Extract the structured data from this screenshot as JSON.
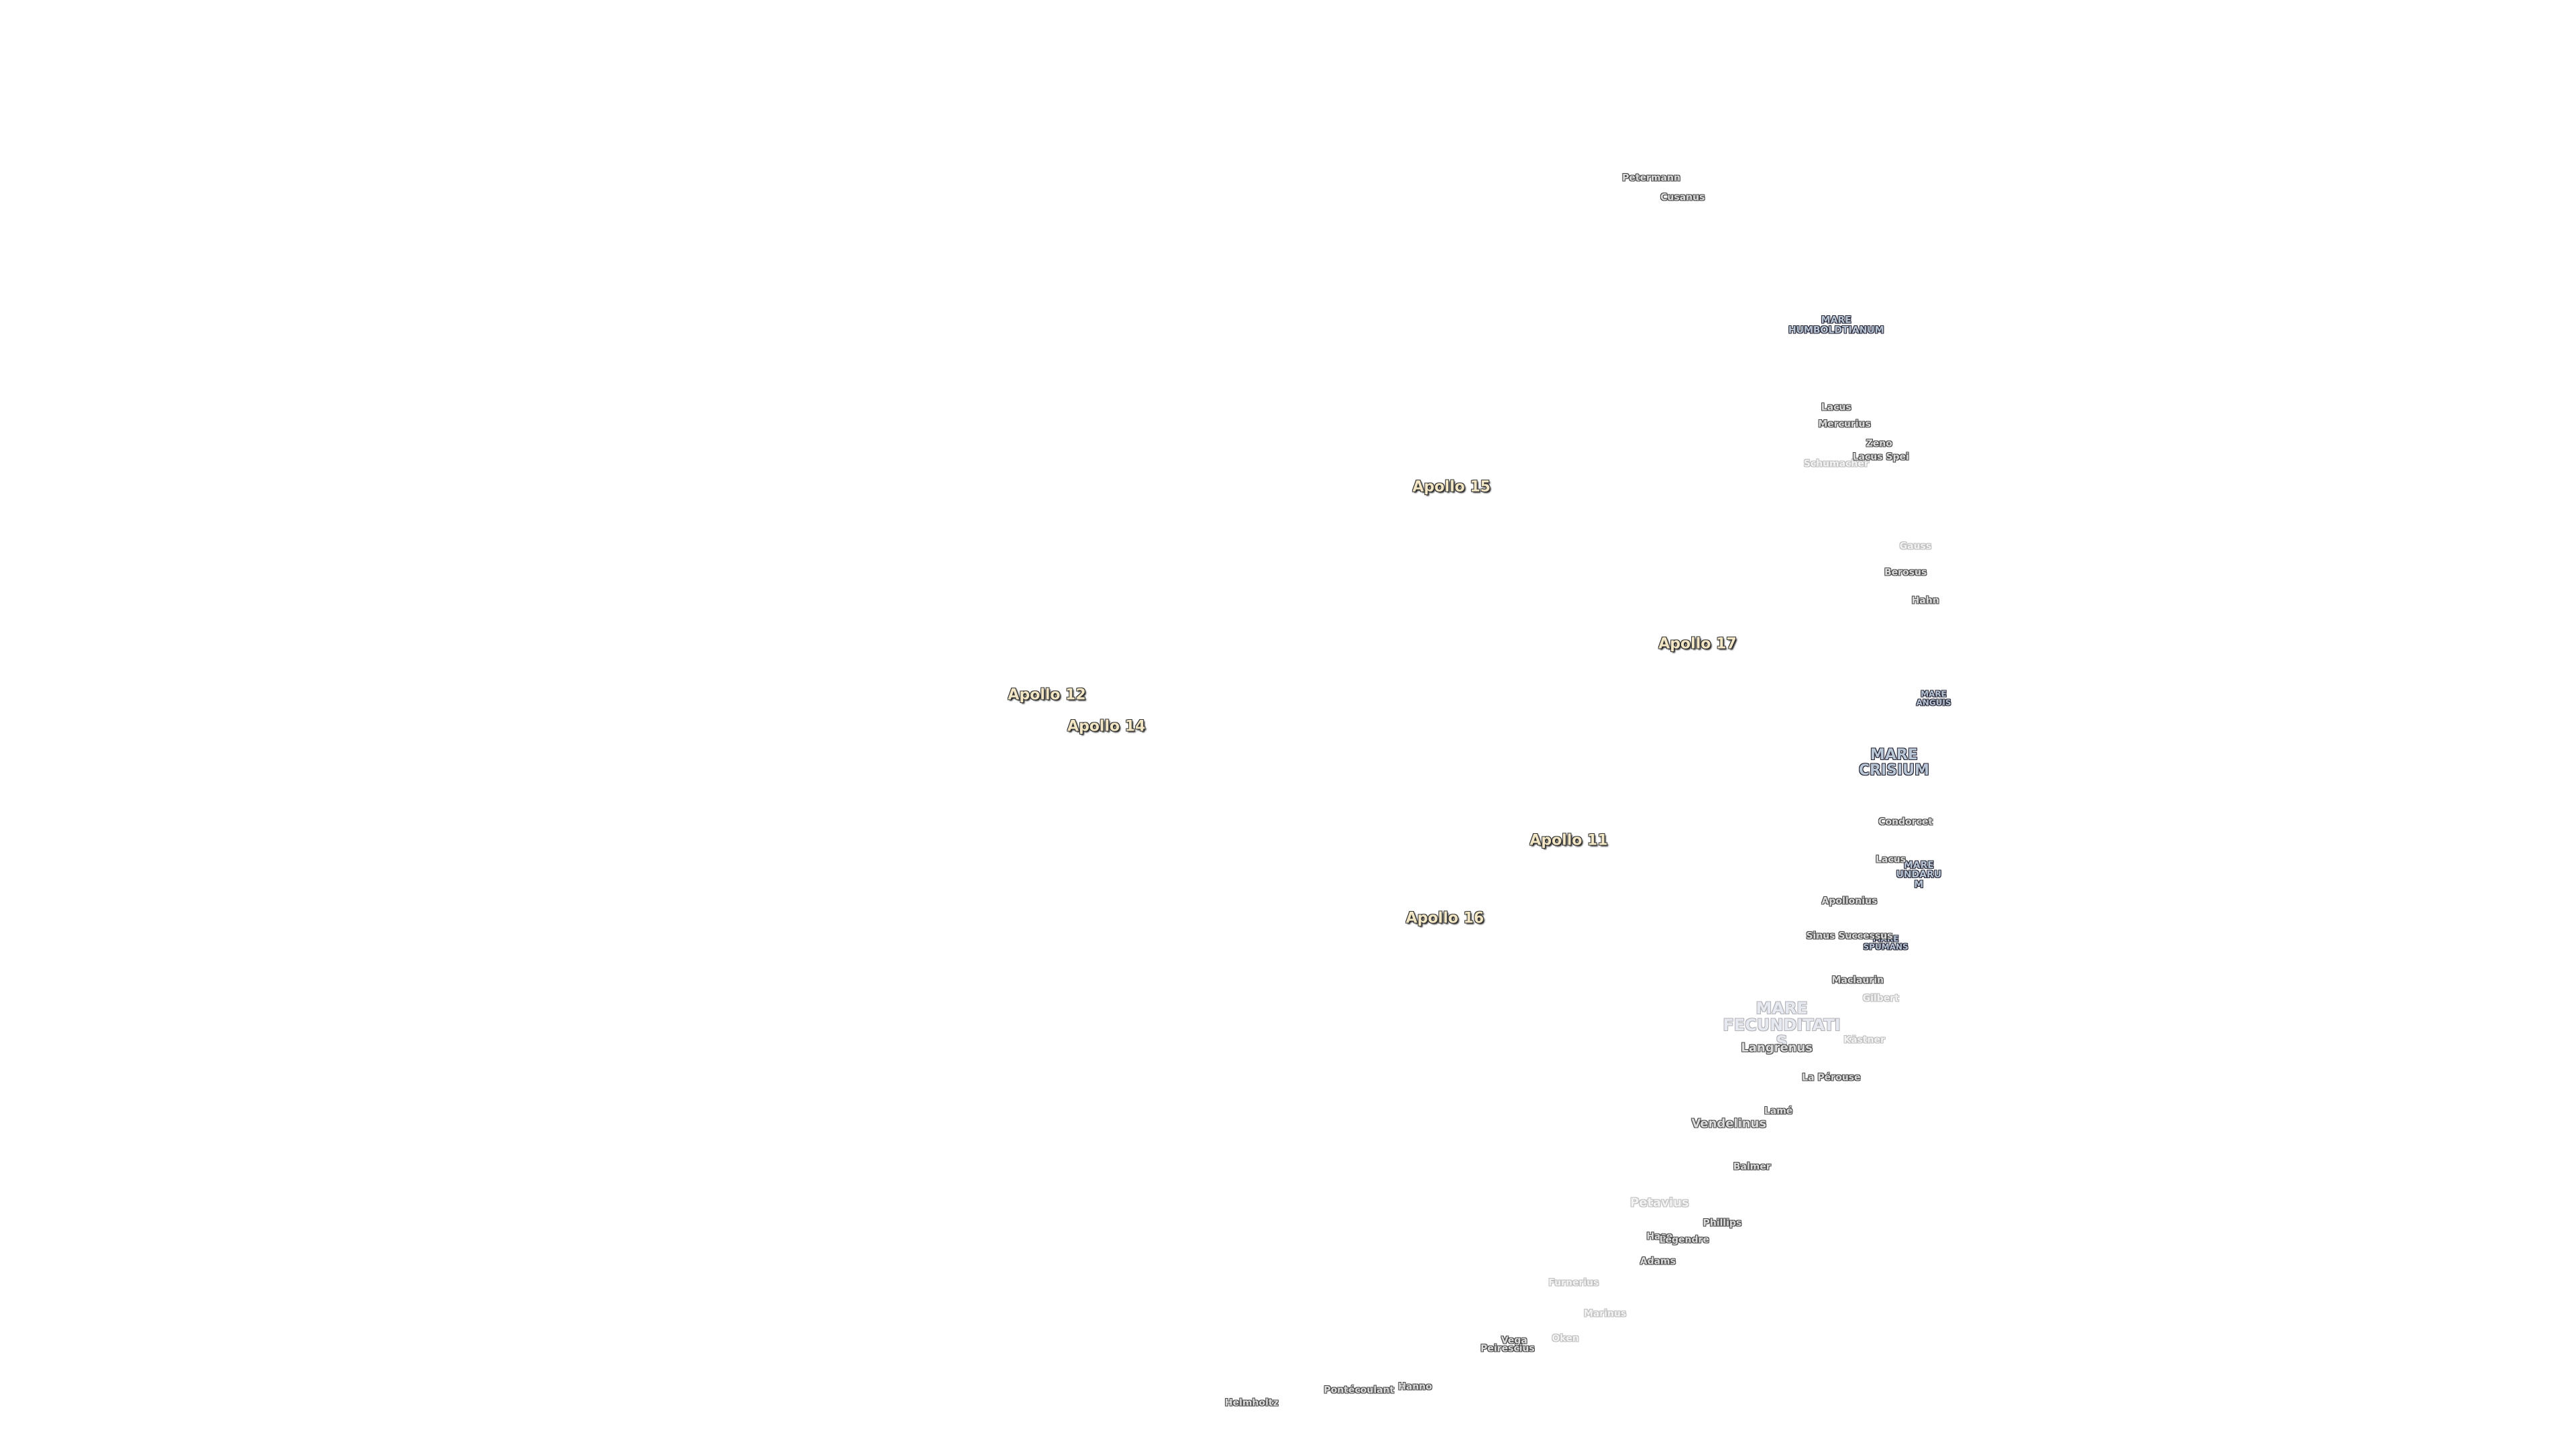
{
  "apollo_sites": [
    "Apollo 15",
    "Apollo 17",
    "Apollo 12",
    "Apollo 14",
    "Apollo 11",
    "Apollo 16"
  ],
  "maria": [
    "MARE HUMBOLDTIANUM",
    "MARE ANGUIS",
    "MARE CRISIUM",
    "MARE UNDARUM",
    "MARE SPUMANS",
    "MARE FECUNDITATIS"
  ],
  "features": [
    "Petermann",
    "Cusanus",
    "Lacus",
    "Mercurius",
    "Zeno",
    "Lacus Spei",
    "Schumacher",
    "Gauss",
    "Berosus",
    "Hahn",
    "Condorcet",
    "Lacus",
    "Apollonius",
    "Sinus Successus",
    "Maclaurin",
    "Gilbert",
    "Kästner",
    "Langrenus",
    "La Pérouse",
    "Lamé",
    "Vendelinus",
    "Balmer",
    "Petavius",
    "Phillips",
    "Hase",
    "Legendre",
    "Adams",
    "Furnerius",
    "Marinus",
    "Vega",
    "Peirescius",
    "Oken",
    "Pontécoulant",
    "Hanno",
    "Helmholtz"
  ]
}
